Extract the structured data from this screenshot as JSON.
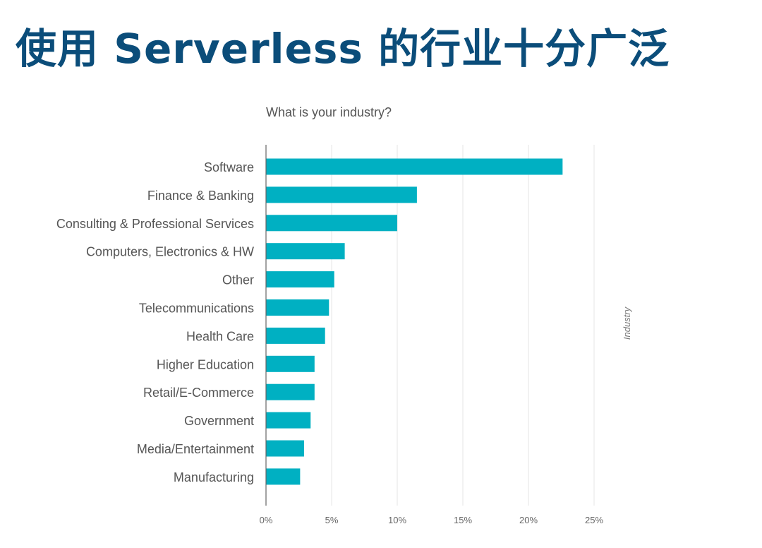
{
  "slide": {
    "title": "使用 Serverless 的行业十分广泛"
  },
  "chart_data": {
    "type": "bar",
    "orientation": "horizontal",
    "title": "What is your industry?",
    "ylabel": "Industry",
    "xlabel": "",
    "categories": [
      "Software",
      "Finance & Banking",
      "Consulting & Professional Services",
      "Computers, Electronics & HW",
      "Other",
      "Telecommunications",
      "Health Care",
      "Higher Education",
      "Retail/E-Commerce",
      "Government",
      "Media/Entertainment",
      "Manufacturing"
    ],
    "values": [
      22.6,
      11.5,
      10.0,
      6.0,
      5.2,
      4.8,
      4.5,
      3.7,
      3.7,
      3.4,
      2.9,
      2.6
    ],
    "xlim": [
      0,
      25
    ],
    "xticks": [
      0,
      5,
      10,
      15,
      20,
      25
    ],
    "xtick_labels": [
      "0%",
      "5%",
      "10%",
      "15%",
      "20%",
      "25%"
    ],
    "grid": true,
    "bar_color": "#00b0c2",
    "grid_color": "#e6e6e6",
    "axis_color": "#666666",
    "label_color": "#555555"
  }
}
